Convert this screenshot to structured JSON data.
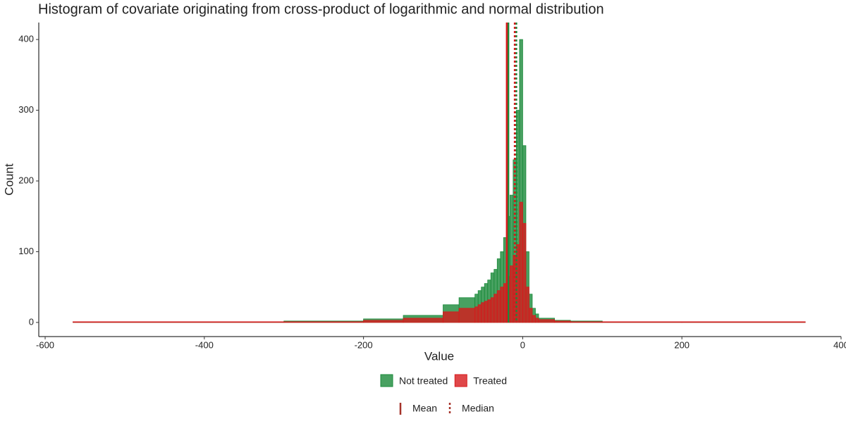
{
  "chart_data": {
    "type": "histogram",
    "title": "Histogram of covariate originating from cross-product of logarithmic and normal distribution",
    "x_label": "Value",
    "y_label": "Count",
    "bins": [
      -565,
      -300,
      -200,
      -150,
      -100,
      -80,
      -60,
      -56,
      -52,
      -48,
      -44,
      -40,
      -36,
      -32,
      -28,
      -24,
      -20,
      -16,
      -12,
      -8,
      -4,
      0,
      4,
      8,
      12,
      16,
      20,
      40,
      60,
      100,
      200,
      355
    ],
    "series": [
      {
        "name": "Not treated",
        "color": "#1a8a3a",
        "mean": -18,
        "median": -8,
        "values": [
          1,
          2,
          5,
          10,
          25,
          35,
          40,
          45,
          50,
          55,
          60,
          70,
          75,
          90,
          100,
          120,
          150,
          180,
          230,
          300,
          400,
          250,
          100,
          40,
          20,
          12,
          6,
          3,
          2,
          1,
          1
        ]
      },
      {
        "name": "Treated",
        "color": "#d7191c",
        "mean": -20,
        "median": -10,
        "values": [
          1,
          1,
          3,
          6,
          15,
          20,
          22,
          25,
          28,
          30,
          32,
          35,
          40,
          45,
          50,
          55,
          65,
          80,
          95,
          110,
          170,
          140,
          50,
          20,
          10,
          6,
          4,
          2,
          1,
          1,
          1
        ]
      }
    ],
    "line_legend": [
      {
        "name": "Mean",
        "style": "solid"
      },
      {
        "name": "Median",
        "style": "dotted"
      }
    ],
    "line_legend_color": "#a5332a",
    "xlim": [
      -608,
      400
    ],
    "ylim": [
      -20,
      424
    ],
    "xticks": [
      -600,
      -400,
      -200,
      0,
      200,
      400
    ],
    "yticks": [
      0,
      100,
      200,
      300,
      400
    ]
  }
}
